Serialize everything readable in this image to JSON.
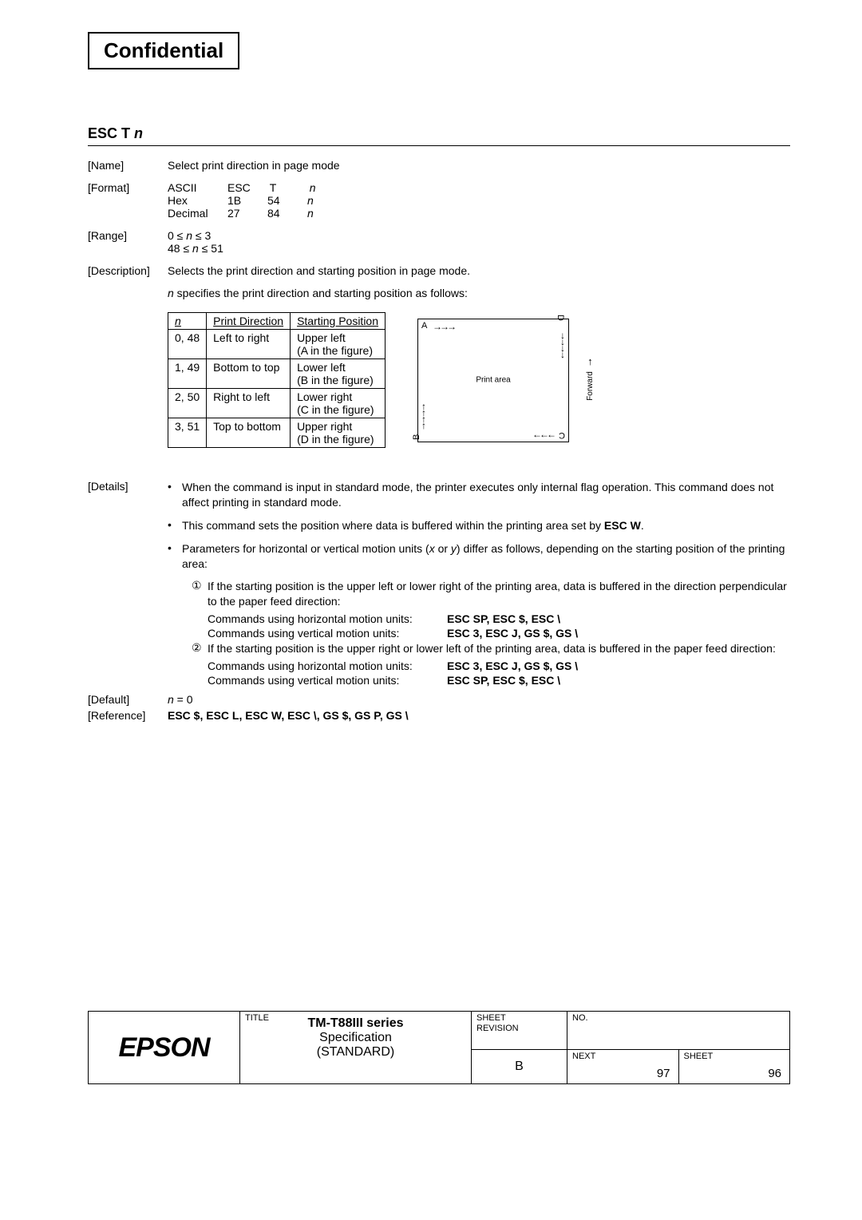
{
  "header": {
    "confidential": "Confidential"
  },
  "command": {
    "title_prefix": "ESC T ",
    "title_var": "n",
    "name_label": "[Name]",
    "name_value": "Select print direction in page mode",
    "format_label": "[Format]",
    "format": {
      "r1": [
        "ASCII",
        "ESC",
        "T",
        "n"
      ],
      "r2": [
        "Hex",
        "1B",
        "54",
        "n"
      ],
      "r3": [
        "Decimal",
        "27",
        "84",
        "n"
      ]
    },
    "range_label": "[Range]",
    "range_line1_a": "0 ≤ ",
    "range_line1_b": "n",
    "range_line1_c": " ≤ 3",
    "range_line2_a": "48 ≤ ",
    "range_line2_b": "n",
    "range_line2_c": " ≤ 51",
    "desc_label": "[Description]",
    "desc_text": "Selects the print direction and starting position in page mode.",
    "desc_sub_a": "n",
    "desc_sub_b": " specifies the print direction and starting position as follows:"
  },
  "dir_table": {
    "h1": "n",
    "h2": "Print Direction",
    "h3": "Starting Position",
    "rows": [
      {
        "n": "0, 48",
        "dir": "Left to right",
        "pos1": "Upper left",
        "pos2": "(A in the figure)"
      },
      {
        "n": "1, 49",
        "dir": "Bottom to top",
        "pos1": "Lower left",
        "pos2": "(B in the figure)"
      },
      {
        "n": "2, 50",
        "dir": "Right to left",
        "pos1": "Lower right",
        "pos2": "(C in the figure)"
      },
      {
        "n": "3, 51",
        "dir": "Top to bottom",
        "pos1": "Upper right",
        "pos2": "(D in the figure)"
      }
    ]
  },
  "diagram": {
    "a": "A",
    "b": "B",
    "c": "C",
    "d": "D",
    "print_area": "Print area",
    "forward": "Forward"
  },
  "details": {
    "label": "[Details]",
    "b1": "When the command is input in standard mode, the printer executes only internal flag operation.    This command does not affect printing in standard mode.",
    "b2_a": "This command sets the position where data is buffered within the printing area set by ",
    "b2_b": "ESC W",
    "b2_c": ".",
    "b3_a": "Parameters for horizontal or vertical motion units (",
    "b3_b": "x",
    "b3_c": " or ",
    "b3_d": "y",
    "b3_e": ") differ as follows, depending on the starting position of the printing area:",
    "s1_num": "①",
    "s1_text": "If the starting position is the upper left or lower right of the printing area, data is buffered in the direction perpendicular to the paper feed direction:",
    "s1_h_label": "Commands using horizontal motion units:",
    "s1_h_vals": "ESC SP, ESC $, ESC \\",
    "s1_v_label": "Commands using vertical motion units:",
    "s1_v_vals": "ESC 3, ESC J, GS $, GS \\",
    "s2_num": "②",
    "s2_text": "If the starting position is the upper right or lower left of the printing area, data is buffered in the paper feed direction:",
    "s2_h_label": "Commands using horizontal motion units:",
    "s2_h_vals": "ESC 3, ESC J, GS $, GS \\",
    "s2_v_label": "Commands using vertical motion units:",
    "s2_v_vals": "ESC SP, ESC $, ESC \\"
  },
  "default": {
    "label": "[Default]",
    "var": "n",
    "val": " = 0"
  },
  "reference": {
    "label": "[Reference]",
    "vals": "ESC $, ESC L, ESC W, ESC \\, GS $, GS P, GS \\"
  },
  "footer": {
    "logo": "EPSON",
    "title_label": "TITLE",
    "title_l1": "TM-T88III series",
    "title_l2": "Specification",
    "title_l3": "(STANDARD)",
    "sheet_rev_l1": "SHEET",
    "sheet_rev_l2": "REVISION",
    "rev_val": "B",
    "no_label": "NO.",
    "next_label": "NEXT",
    "next_val": "97",
    "sheet_label": "SHEET",
    "sheet_val": "96"
  }
}
